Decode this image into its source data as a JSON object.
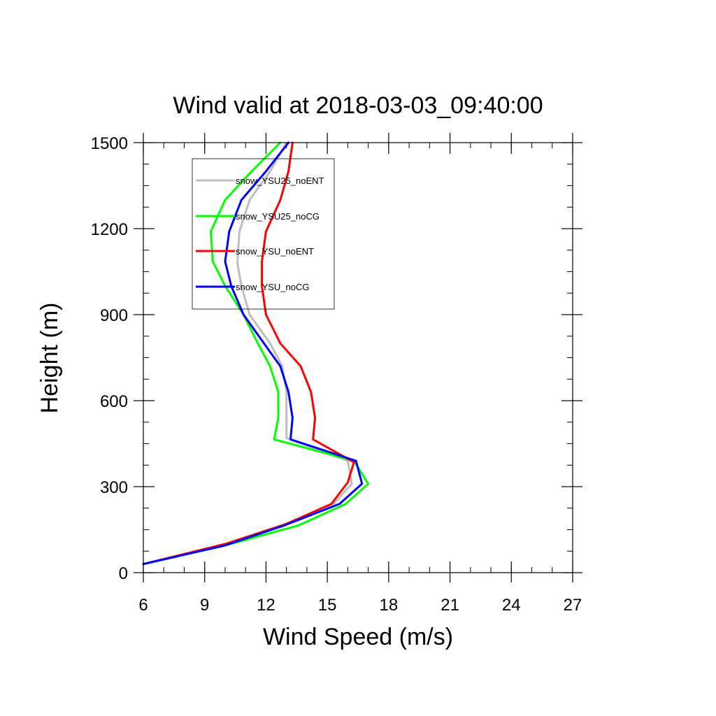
{
  "chart_data": {
    "type": "line",
    "title": "Wind valid at 2018-03-03_09:40:00",
    "xlabel": "Wind Speed (m/s)",
    "ylabel": "Height (m)",
    "xlim": [
      6,
      27
    ],
    "ylim": [
      0,
      1500
    ],
    "xticks": [
      "6",
      "9",
      "12",
      "15",
      "18",
      "21",
      "24",
      "27"
    ],
    "yticks": [
      "0",
      "300",
      "600",
      "900",
      "1200",
      "1500"
    ],
    "legend_placement": "top-left inside",
    "series": [
      {
        "name": "snow_YSU25_noENT",
        "color": "#bebebe",
        "points": [
          [
            6.0,
            30
          ],
          [
            10.0,
            95
          ],
          [
            12.8,
            165
          ],
          [
            15.3,
            240
          ],
          [
            16.2,
            310
          ],
          [
            16.0,
            390
          ],
          [
            13.0,
            470
          ],
          [
            13.0,
            540
          ],
          [
            13.0,
            630
          ],
          [
            12.8,
            720
          ],
          [
            12.2,
            800
          ],
          [
            11.2,
            900
          ],
          [
            10.8,
            1000
          ],
          [
            10.6,
            1080
          ],
          [
            10.7,
            1190
          ],
          [
            11.2,
            1300
          ],
          [
            12.2,
            1400
          ],
          [
            13.0,
            1500
          ]
        ]
      },
      {
        "name": "snow_YSU25_noCG",
        "color": "#00ff00",
        "points": [
          [
            6.0,
            30
          ],
          [
            10.0,
            95
          ],
          [
            13.6,
            165
          ],
          [
            15.9,
            240
          ],
          [
            17.0,
            310
          ],
          [
            16.3,
            390
          ],
          [
            12.4,
            465
          ],
          [
            12.6,
            540
          ],
          [
            12.6,
            630
          ],
          [
            12.2,
            720
          ],
          [
            11.6,
            800
          ],
          [
            10.9,
            900
          ],
          [
            10.0,
            1000
          ],
          [
            9.4,
            1085
          ],
          [
            9.3,
            1190
          ],
          [
            10.0,
            1300
          ],
          [
            11.3,
            1400
          ],
          [
            12.7,
            1500
          ]
        ]
      },
      {
        "name": "snow_YSU_noENT",
        "color": "#ff0000",
        "points": [
          [
            6.0,
            30
          ],
          [
            10.0,
            100
          ],
          [
            13.0,
            170
          ],
          [
            15.2,
            240
          ],
          [
            16.0,
            315
          ],
          [
            16.3,
            385
          ],
          [
            14.3,
            465
          ],
          [
            14.4,
            540
          ],
          [
            14.2,
            630
          ],
          [
            13.7,
            720
          ],
          [
            12.7,
            800
          ],
          [
            12.0,
            900
          ],
          [
            11.8,
            1000
          ],
          [
            11.8,
            1085
          ],
          [
            12.0,
            1190
          ],
          [
            12.7,
            1300
          ],
          [
            13.1,
            1400
          ],
          [
            13.3,
            1500
          ]
        ]
      },
      {
        "name": "snow_YSU_noCG",
        "color": "#0000ff",
        "points": [
          [
            6.0,
            30
          ],
          [
            10.0,
            95
          ],
          [
            12.9,
            165
          ],
          [
            15.6,
            240
          ],
          [
            16.7,
            310
          ],
          [
            16.4,
            390
          ],
          [
            13.2,
            465
          ],
          [
            13.3,
            540
          ],
          [
            13.1,
            630
          ],
          [
            12.7,
            720
          ],
          [
            11.9,
            800
          ],
          [
            10.9,
            900
          ],
          [
            10.3,
            1000
          ],
          [
            10.0,
            1085
          ],
          [
            10.2,
            1190
          ],
          [
            10.8,
            1300
          ],
          [
            12.0,
            1400
          ],
          [
            13.1,
            1500
          ]
        ]
      }
    ]
  }
}
